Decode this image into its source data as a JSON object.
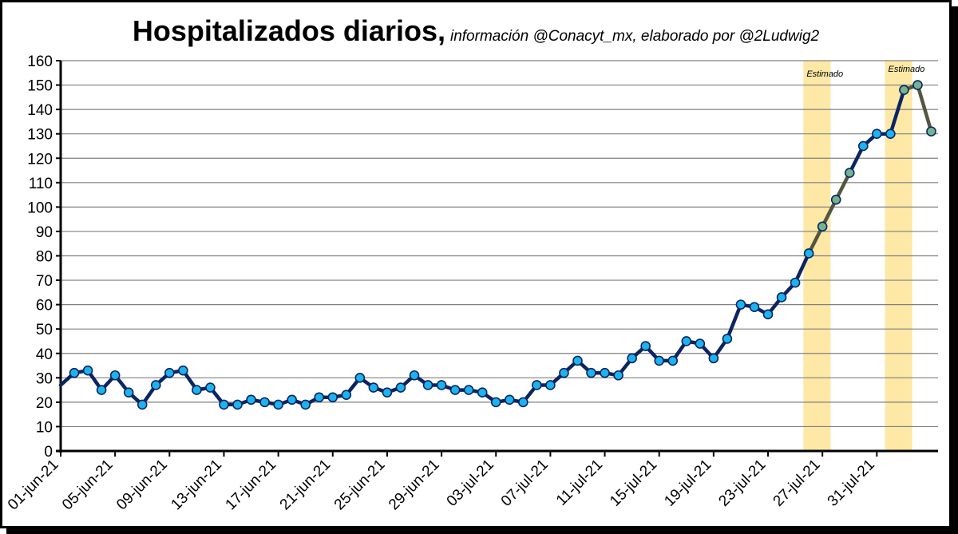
{
  "title": {
    "main": "Hospitalizados diarios,",
    "sub": "información @Conacyt_mx, elaborado por @2Ludwig2"
  },
  "colors": {
    "line": "#0c2463",
    "marker": "#1cb4ec",
    "estimated_line": "#55563e",
    "estimated_marker": "#71b48e",
    "band": "#fde8a6",
    "grid": "#808080"
  },
  "chart_data": {
    "type": "line",
    "title": "Hospitalizados diarios,",
    "subtitle": "información @Conacyt_mx, elaborado por @2Ludwig2",
    "xlabel": "",
    "ylabel": "",
    "ylim": [
      0,
      160
    ],
    "yticks": [
      0,
      10,
      20,
      30,
      40,
      50,
      60,
      70,
      80,
      90,
      100,
      110,
      120,
      130,
      140,
      150,
      160
    ],
    "grid": true,
    "x_start": "01-jun-21",
    "x_tick_labels": [
      "01-jun-21",
      "05-jun-21",
      "09-jun-21",
      "13-jun-21",
      "17-jun-21",
      "21-jun-21",
      "25-jun-21",
      "29-jun-21",
      "03-jul-21",
      "07-jul-21",
      "11-jul-21",
      "15-jul-21",
      "19-jul-21",
      "23-jul-21",
      "27-jul-21",
      "31-jul-21"
    ],
    "values": [
      27,
      32,
      33,
      25,
      31,
      24,
      19,
      27,
      32,
      33,
      25,
      26,
      19,
      19,
      21,
      20,
      19,
      21,
      19,
      22,
      22,
      23,
      30,
      26,
      24,
      26,
      31,
      27,
      27,
      25,
      25,
      24,
      20,
      21,
      20,
      27,
      27,
      32,
      37,
      32,
      32,
      31,
      38,
      43,
      37,
      37,
      45,
      44,
      38,
      46,
      60,
      59,
      56,
      63,
      69,
      81,
      92,
      103,
      114,
      125,
      130,
      130,
      148,
      150,
      131
    ],
    "estimated_indices": [
      56,
      57,
      58,
      62,
      63,
      64
    ],
    "estimated_bands": [
      {
        "label": "Estimado",
        "start": "26-jul-21",
        "end": "28-jul-21"
      },
      {
        "label": "Estimado",
        "start": "01-ago-21",
        "end": "03-ago-21"
      }
    ]
  }
}
